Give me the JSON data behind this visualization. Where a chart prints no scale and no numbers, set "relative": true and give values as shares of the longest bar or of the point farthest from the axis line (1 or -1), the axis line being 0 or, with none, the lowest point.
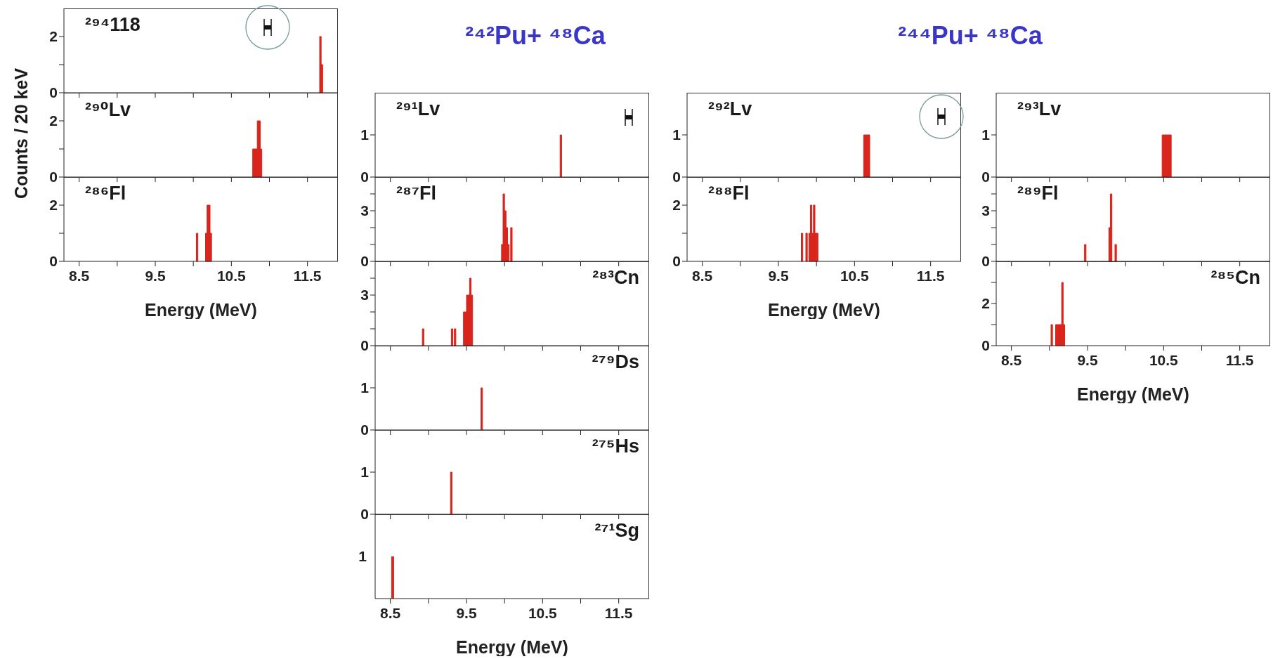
{
  "chart_data": [
    {
      "type": "histogram",
      "title": "²⁹⁴118",
      "bins": [
        11.66,
        11.68,
        11.7
      ],
      "values": [
        2,
        1
      ],
      "color": "#d9251c",
      "xlim": [
        8.3,
        11.9
      ],
      "xticks": [
        8.5,
        {
          "value": 9,
          "label": null
        },
        9.5,
        {
          "value": 10,
          "label": null
        },
        10.5,
        {
          "value": 11,
          "label": null
        },
        11.5
      ],
      "ylim": [
        0,
        3
      ],
      "yticks": [
        0,
        {
          "value": 1,
          "label": null
        },
        2
      ],
      "tick_labels": "y"
    },
    {
      "type": "histogram",
      "title": "²⁹⁰Lv",
      "ylabel": "Counts / 20 keV",
      "bins": [
        10.78,
        10.8,
        10.82,
        10.84,
        10.86,
        10.88,
        10.9
      ],
      "values": [
        1,
        1,
        1,
        2,
        2,
        1
      ],
      "color": "#d9251c",
      "xlim": [
        8.3,
        11.9
      ],
      "xticks": [
        8.5,
        {
          "value": 9,
          "label": null
        },
        9.5,
        {
          "value": 10,
          "label": null
        },
        10.5,
        {
          "value": 11,
          "label": null
        },
        11.5
      ],
      "ylim": [
        0,
        3
      ],
      "yticks": [
        0,
        {
          "value": 1,
          "label": null
        },
        2
      ],
      "tick_labels": "y"
    },
    {
      "type": "histogram",
      "title": "²⁸⁶Fl",
      "xlabel": "Energy (MeV)",
      "bins": [
        10.04,
        10.06,
        10.08,
        10.1,
        10.12,
        10.14,
        10.16,
        10.18,
        10.2,
        10.22,
        10.24
      ],
      "values": [
        1,
        0,
        0,
        0,
        0,
        0,
        1,
        2,
        2,
        1
      ],
      "color": "#d9251c",
      "xlim": [
        8.3,
        11.9
      ],
      "xticks": [
        8.5,
        {
          "value": 9,
          "label": null
        },
        9.5,
        {
          "value": 10,
          "label": null
        },
        10.5,
        {
          "value": 11,
          "label": null
        },
        11.5
      ],
      "ylim": [
        0,
        3
      ],
      "yticks": [
        0,
        {
          "value": 1,
          "label": null
        },
        2
      ]
    },
    {
      "type": "histogram",
      "title": "²⁹¹Lv",
      "subtitle": "²⁴²Pu+ ⁴⁸Ca",
      "bins": [
        10.73,
        10.75
      ],
      "values": [
        1
      ],
      "color": "#d9251c",
      "xlim": [
        8.3,
        11.9
      ],
      "xticks": [
        8.5,
        {
          "value": 9,
          "label": null
        },
        9.5,
        {
          "value": 10,
          "label": null
        },
        10.5,
        {
          "value": 11,
          "label": null
        },
        11.5
      ],
      "ylim": [
        0,
        2
      ],
      "yticks": [
        0,
        1
      ],
      "tick_labels": "y"
    },
    {
      "type": "histogram",
      "title": "²⁸⁷Fl",
      "bins": [
        9.96,
        9.98,
        10.0,
        10.02,
        10.04,
        10.06,
        10.08,
        10.1
      ],
      "values": [
        1,
        4,
        3,
        2,
        1,
        0,
        2
      ],
      "color": "#d9251c",
      "xlim": [
        8.3,
        11.9
      ],
      "xticks": [
        8.5,
        {
          "value": 9,
          "label": null
        },
        9.5,
        {
          "value": 10,
          "label": null
        },
        10.5,
        {
          "value": 11,
          "label": null
        },
        11.5
      ],
      "ylim": [
        0,
        5
      ],
      "yticks": [
        0,
        {
          "value": 1,
          "label": null
        },
        {
          "value": 2,
          "label": null
        },
        3,
        {
          "value": 4,
          "label": null
        }
      ],
      "tick_labels": "y"
    },
    {
      "type": "histogram",
      "title": "²⁸³Cn",
      "bins": [
        8.92,
        8.94,
        8.96,
        8.98,
        9.0,
        9.02,
        9.04,
        9.06,
        9.08,
        9.1,
        9.12,
        9.14,
        9.16,
        9.18,
        9.2,
        9.22,
        9.24,
        9.26,
        9.28,
        9.3,
        9.32,
        9.34,
        9.36,
        9.38,
        9.4,
        9.42,
        9.44,
        9.46,
        9.48,
        9.5,
        9.52,
        9.54,
        9.56,
        9.58
      ],
      "values": [
        1,
        0,
        0,
        0,
        0,
        0,
        0,
        0,
        0,
        0,
        0,
        0,
        0,
        0,
        0,
        0,
        0,
        0,
        0,
        1,
        0,
        1,
        0,
        0,
        0,
        0,
        0,
        2,
        2,
        3,
        3,
        4,
        3
      ],
      "color": "#d9251c",
      "xlim": [
        8.3,
        11.9
      ],
      "xticks": [
        8.5,
        {
          "value": 9,
          "label": null
        },
        9.5,
        {
          "value": 10,
          "label": null
        },
        10.5,
        {
          "value": 11,
          "label": null
        },
        11.5
      ],
      "ylim": [
        0,
        5
      ],
      "yticks": [
        0,
        {
          "value": 1,
          "label": null
        },
        {
          "value": 2,
          "label": null
        },
        3,
        {
          "value": 4,
          "label": null
        }
      ],
      "tick_labels": "y"
    },
    {
      "type": "histogram",
      "title": "²⁷⁹Ds",
      "bins": [
        9.69,
        9.71
      ],
      "values": [
        1
      ],
      "color": "#d9251c",
      "xlim": [
        8.3,
        11.9
      ],
      "xticks": [
        8.5,
        {
          "value": 9,
          "label": null
        },
        9.5,
        {
          "value": 10,
          "label": null
        },
        10.5,
        {
          "value": 11,
          "label": null
        },
        11.5
      ],
      "ylim": [
        0,
        2
      ],
      "yticks": [
        0,
        1
      ],
      "tick_labels": "y"
    },
    {
      "type": "histogram",
      "title": "²⁷⁵Hs",
      "bins": [
        9.29,
        9.31
      ],
      "values": [
        1
      ],
      "color": "#d9251c",
      "xlim": [
        8.3,
        11.9
      ],
      "xticks": [
        8.5,
        {
          "value": 9,
          "label": null
        },
        9.5,
        {
          "value": 10,
          "label": null
        },
        10.5,
        {
          "value": 11,
          "label": null
        },
        11.5
      ],
      "ylim": [
        0,
        2
      ],
      "yticks": [
        0,
        1
      ],
      "tick_labels": "y"
    },
    {
      "type": "bar",
      "title": "²⁷¹Sg",
      "xlabel": "Energy (MeV)",
      "annotations": [
        "1"
      ],
      "relative": true,
      "x": [
        8.53
      ],
      "values": [
        1
      ],
      "color": "#d9251c",
      "xlim": [
        8.3,
        11.9
      ],
      "xticks": [
        8.5,
        {
          "value": 9,
          "label": null
        },
        9.5,
        {
          "value": 10,
          "label": null
        },
        10.5,
        {
          "value": 11,
          "label": null
        },
        11.5
      ]
    },
    {
      "type": "histogram",
      "title": "²⁹²Lv",
      "subtitle": "²⁴⁴Pu+ ⁴⁸Ca",
      "bins": [
        10.62,
        10.64,
        10.66,
        10.68,
        10.7
      ],
      "values": [
        1,
        1,
        1,
        1
      ],
      "color": "#d9251c",
      "xlim": [
        8.3,
        11.9
      ],
      "xticks": [
        8.5,
        {
          "value": 9,
          "label": null
        },
        9.5,
        {
          "value": 10,
          "label": null
        },
        10.5,
        {
          "value": 11,
          "label": null
        },
        11.5
      ],
      "ylim": [
        0,
        2
      ],
      "yticks": [
        0,
        1
      ],
      "tick_labels": "y"
    },
    {
      "type": "histogram",
      "title": "²⁸⁸Fl",
      "xlabel": "Energy (MeV)",
      "bins": [
        9.8,
        9.82,
        9.84,
        9.86,
        9.88,
        9.9,
        9.92,
        9.94,
        9.96,
        9.98,
        10.0,
        10.02
      ],
      "values": [
        1,
        0,
        0,
        1,
        0,
        1,
        2,
        1,
        2,
        1,
        1
      ],
      "color": "#d9251c",
      "xlim": [
        8.3,
        11.9
      ],
      "xticks": [
        8.5,
        {
          "value": 9,
          "label": null
        },
        9.5,
        {
          "value": 10,
          "label": null
        },
        10.5,
        {
          "value": 11,
          "label": null
        },
        11.5
      ],
      "ylim": [
        0,
        3
      ],
      "yticks": [
        0,
        {
          "value": 1,
          "label": null
        },
        2
      ]
    },
    {
      "type": "histogram",
      "title": "²⁹³Lv",
      "bins": [
        10.48,
        10.5,
        10.52,
        10.54,
        10.56,
        10.58,
        10.6
      ],
      "values": [
        1,
        1,
        1,
        1,
        1,
        1
      ],
      "color": "#d9251c",
      "xlim": [
        8.3,
        11.9
      ],
      "xticks": [
        8.5,
        {
          "value": 9,
          "label": null
        },
        9.5,
        {
          "value": 10,
          "label": null
        },
        10.5,
        {
          "value": 11,
          "label": null
        },
        11.5
      ],
      "ylim": [
        0,
        2
      ],
      "yticks": [
        0,
        1
      ],
      "tick_labels": "y"
    },
    {
      "type": "histogram",
      "title": "²⁸⁹Fl",
      "bins": [
        9.46,
        9.48,
        9.5,
        9.52,
        9.54,
        9.56,
        9.58,
        9.6,
        9.62,
        9.64,
        9.66,
        9.68,
        9.7,
        9.72,
        9.74,
        9.76,
        9.78,
        9.8,
        9.82,
        9.84,
        9.86,
        9.88
      ],
      "values": [
        1,
        0,
        0,
        0,
        0,
        0,
        0,
        0,
        0,
        0,
        0,
        0,
        0,
        0,
        0,
        0,
        2,
        4,
        0,
        0,
        1
      ],
      "color": "#d9251c",
      "xlim": [
        8.3,
        11.9
      ],
      "xticks": [
        8.5,
        {
          "value": 9,
          "label": null
        },
        9.5,
        {
          "value": 10,
          "label": null
        },
        10.5,
        {
          "value": 11,
          "label": null
        },
        11.5
      ],
      "ylim": [
        0,
        5
      ],
      "yticks": [
        0,
        {
          "value": 1,
          "label": null
        },
        {
          "value": 2,
          "label": null
        },
        3,
        {
          "value": 4,
          "label": null
        }
      ],
      "tick_labels": "y"
    },
    {
      "type": "histogram",
      "title": "²⁸⁵Cn",
      "xlabel": "Energy (MeV)",
      "bins": [
        9.02,
        9.04,
        9.06,
        9.08,
        9.1,
        9.12,
        9.14,
        9.16,
        9.18,
        9.2
      ],
      "values": [
        1,
        0,
        0,
        1,
        1,
        1,
        1,
        3,
        1
      ],
      "color": "#d9251c",
      "xlim": [
        8.3,
        11.9
      ],
      "xticks": [
        8.5,
        {
          "value": 9,
          "label": null
        },
        9.5,
        {
          "value": 10,
          "label": null
        },
        10.5,
        {
          "value": 11,
          "label": null
        },
        11.5
      ],
      "ylim": [
        0,
        4
      ],
      "yticks": [
        0,
        {
          "value": 1,
          "label": null
        },
        2,
        {
          "value": 3,
          "label": null
        }
      ]
    }
  ]
}
